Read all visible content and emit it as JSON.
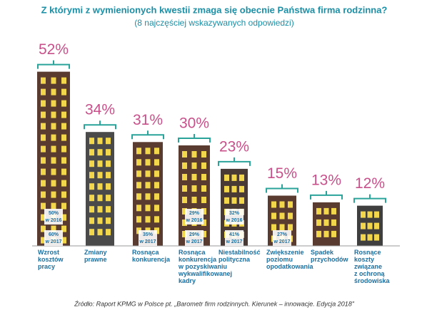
{
  "chart_data": {
    "type": "bar",
    "title": "Z którymi z wymienionych kwestii zmaga się obecnie Państwa firma rodzinna?",
    "subtitle": "(8 najczęściej wskazywanych odpowiedzi)",
    "categories": [
      "Wzrost\nkosztów\npracy",
      "Zmiany\nprawne",
      "Rosnąca\nkonkurencja",
      "Rosnąca\nkonkurencja\nw pozyskiwaniu\nwykwalifikowanej\nkadry",
      "Niestabilność\npolityczna",
      "Zwiększenie\npoziomu\nopodatkowania",
      "Spadek\nprzychodów",
      "Rosnące\nkoszty\nzwiązane\nz ochroną\nśrodowiska"
    ],
    "values": [
      52,
      34,
      31,
      30,
      23,
      15,
      13,
      12
    ],
    "value_labels": [
      "52%",
      "34%",
      "31%",
      "30%",
      "23%",
      "15%",
      "13%",
      "12%"
    ],
    "color": "#5a3b30",
    "series": [
      {
        "name": "w 2016",
        "values": [
          50,
          null,
          null,
          29,
          32,
          null,
          null,
          null
        ],
        "value_labels": [
          "50%",
          null,
          null,
          "29%",
          "32%",
          null,
          null,
          null
        ]
      },
      {
        "name": "w 2017",
        "values": [
          60,
          null,
          35,
          29,
          41,
          27,
          null,
          null
        ],
        "value_labels": [
          "60%",
          null,
          "35%",
          "29%",
          "41%",
          "27%",
          null,
          null
        ]
      }
    ],
    "source": "Źródło: Raport KPMG w Polsce pt. „Barometr firm rodzinnych. Kierunek – innowacje. Edycja 2018”"
  }
}
